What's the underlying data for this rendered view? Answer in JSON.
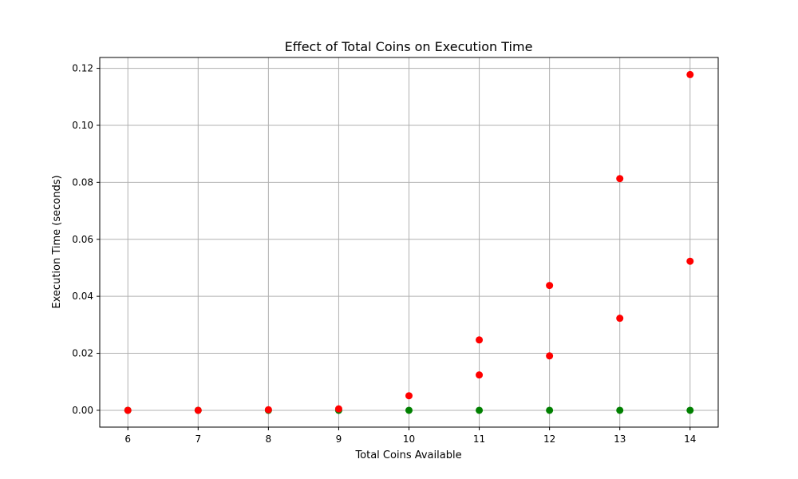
{
  "chart_data": {
    "type": "scatter",
    "title": "Effect of Total Coins on Execution Time",
    "xlabel": "Total Coins Available",
    "ylabel": "Execution Time (seconds)",
    "xlim": [
      5.6,
      14.4
    ],
    "ylim": [
      -0.0059,
      0.1238
    ],
    "xticks": [
      6,
      7,
      8,
      9,
      10,
      11,
      12,
      13,
      14
    ],
    "yticks": [
      "0.00",
      "0.02",
      "0.04",
      "0.06",
      "0.08",
      "0.10",
      "0.12"
    ],
    "grid": true,
    "series": [
      {
        "color": "#008000",
        "points": [
          {
            "x": 6,
            "y": 0.0
          },
          {
            "x": 7,
            "y": 0.0
          },
          {
            "x": 8,
            "y": 0.0
          },
          {
            "x": 9,
            "y": 0.0
          },
          {
            "x": 10,
            "y": 0.0
          },
          {
            "x": 11,
            "y": 0.0
          },
          {
            "x": 12,
            "y": 0.0
          },
          {
            "x": 13,
            "y": 0.0
          },
          {
            "x": 14,
            "y": 0.0
          }
        ]
      },
      {
        "color": "#ff0000",
        "points": [
          {
            "x": 6,
            "y": 0.0
          },
          {
            "x": 7,
            "y": 0.0
          },
          {
            "x": 8,
            "y": 0.0002
          },
          {
            "x": 9,
            "y": 0.0005
          },
          {
            "x": 10,
            "y": 0.0051
          },
          {
            "x": 11,
            "y": 0.0124
          },
          {
            "x": 11,
            "y": 0.0247
          },
          {
            "x": 12,
            "y": 0.0191
          },
          {
            "x": 12,
            "y": 0.0438
          },
          {
            "x": 13,
            "y": 0.0323
          },
          {
            "x": 13,
            "y": 0.0813
          },
          {
            "x": 14,
            "y": 0.0523
          },
          {
            "x": 14,
            "y": 0.1178
          }
        ]
      }
    ]
  }
}
